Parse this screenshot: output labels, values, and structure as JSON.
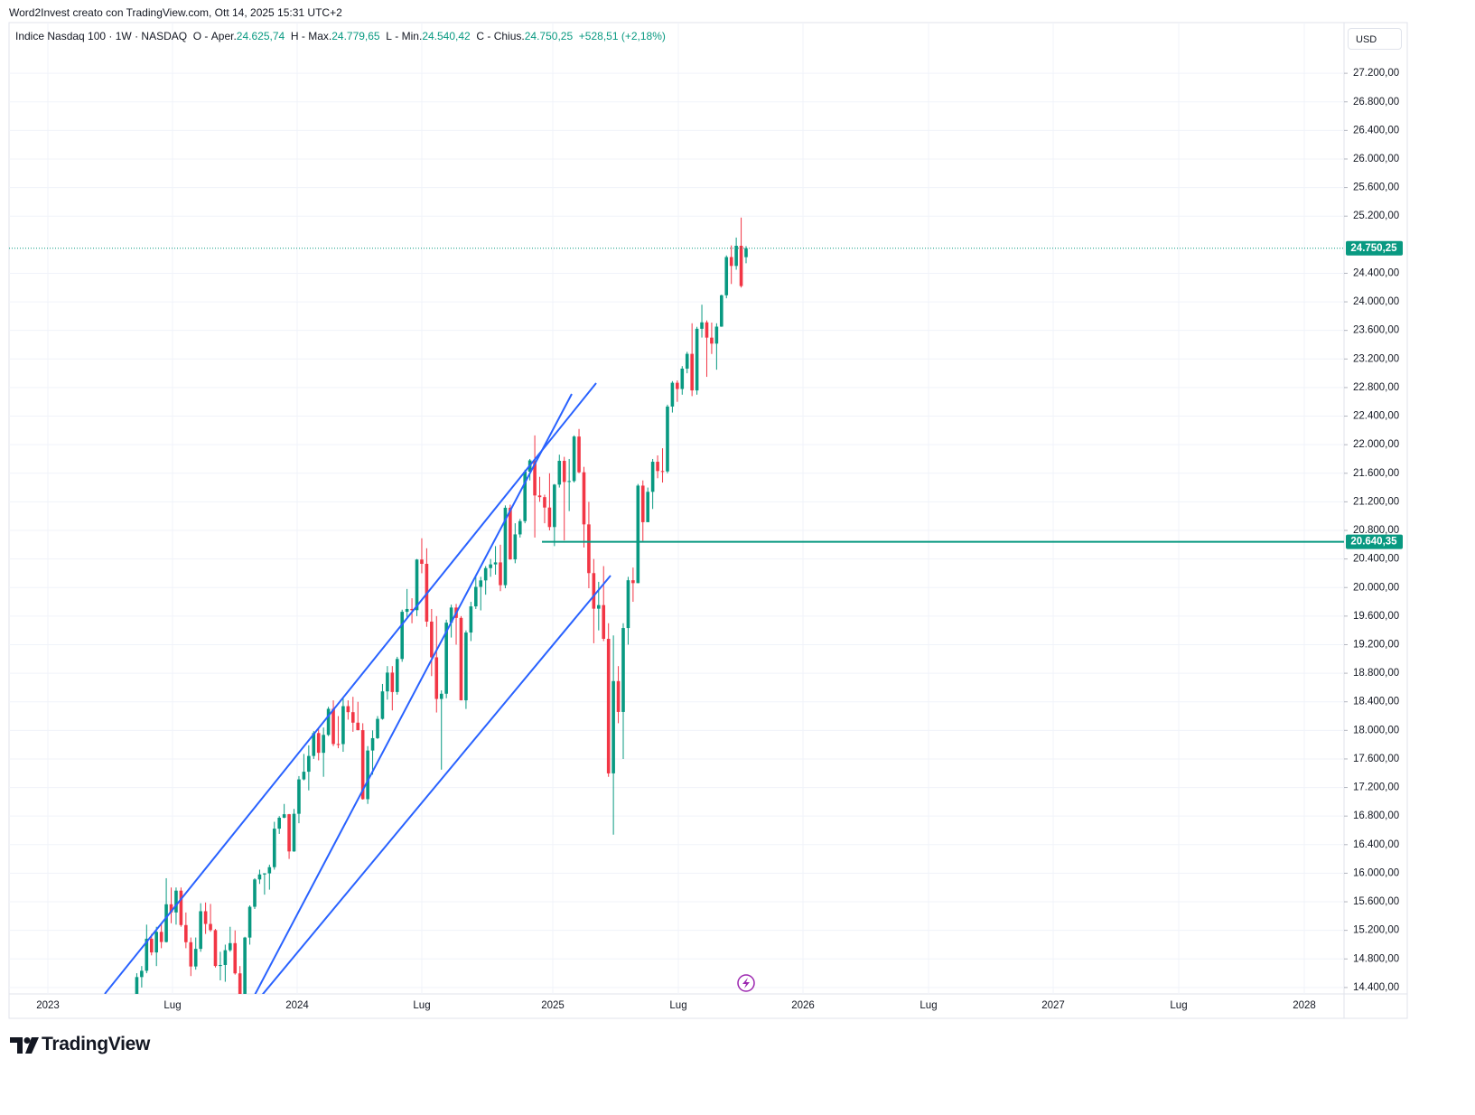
{
  "header": {
    "credit": "Word2Invest creato con TradingView.com, Ott 14, 2025 15:31 UTC+2",
    "symbol": "Indice Nasdaq 100 · 1W · NASDAQ",
    "o_key": "O",
    "o_name": "Aper.",
    "o_value": "24.625,74",
    "h_key": "H",
    "h_name": "Max.",
    "h_value": "24.779,65",
    "l_key": "L",
    "l_name": "Min.",
    "l_value": "24.540,42",
    "c_key": "C",
    "c_name": "Chius.",
    "c_value": "24.750,25",
    "change": "+528,51 (+2,18%)",
    "currency": "USD"
  },
  "footer": {
    "brand": "TradingView"
  },
  "chart_data": {
    "type": "candlestick",
    "up_color": "#089981",
    "down_color": "#f23645",
    "ylim": [
      14310,
      27910
    ],
    "yticks": [
      {
        "value": 14400,
        "label": "14.400,00"
      },
      {
        "value": 14800,
        "label": "14.800,00"
      },
      {
        "value": 15200,
        "label": "15.200,00"
      },
      {
        "value": 15600,
        "label": "15.600,00"
      },
      {
        "value": 16000,
        "label": "16.000,00"
      },
      {
        "value": 16400,
        "label": "16.400,00"
      },
      {
        "value": 16800,
        "label": "16.800,00"
      },
      {
        "value": 17200,
        "label": "17.200,00"
      },
      {
        "value": 17600,
        "label": "17.600,00"
      },
      {
        "value": 18000,
        "label": "18.000,00"
      },
      {
        "value": 18400,
        "label": "18.400,00"
      },
      {
        "value": 18800,
        "label": "18.800,00"
      },
      {
        "value": 19200,
        "label": "19.200,00"
      },
      {
        "value": 19600,
        "label": "19.600,00"
      },
      {
        "value": 20000,
        "label": "20.000,00"
      },
      {
        "value": 20400,
        "label": "20.400,00"
      },
      {
        "value": 20800,
        "label": "20.800,00"
      },
      {
        "value": 21200,
        "label": "21.200,00"
      },
      {
        "value": 21600,
        "label": "21.600,00"
      },
      {
        "value": 22000,
        "label": "22.000,00"
      },
      {
        "value": 22400,
        "label": "22.400,00"
      },
      {
        "value": 22800,
        "label": "22.800,00"
      },
      {
        "value": 23200,
        "label": "23.200,00"
      },
      {
        "value": 23600,
        "label": "23.600,00"
      },
      {
        "value": 24000,
        "label": "24.000,00"
      },
      {
        "value": 24400,
        "label": "24.400,00"
      },
      {
        "value": 25200,
        "label": "25.200,00"
      },
      {
        "value": 25600,
        "label": "25.600,00"
      },
      {
        "value": 26000,
        "label": "26.000,00"
      },
      {
        "value": 26400,
        "label": "26.400,00"
      },
      {
        "value": 26800,
        "label": "26.800,00"
      },
      {
        "value": 27200,
        "label": "27.200,00"
      }
    ],
    "xticks": [
      "2023",
      "Lug",
      "2024",
      "Lug",
      "2025",
      "Lug",
      "2026",
      "Lug",
      "2027",
      "Lug",
      "2028"
    ],
    "last_price": {
      "value": 24750.25,
      "label": "24.750,25"
    },
    "hline": {
      "value": 20640.35,
      "label": "20.640,35"
    },
    "open": [
      14250,
      14546,
      14634,
      15083,
      14891,
      15179,
      15037,
      15565,
      15451,
      15756,
      15274,
      15034,
      14694,
      14941,
      15468,
      15290,
      15203,
      14701,
      14715,
      14922,
      15021,
      14598,
      14180,
      15099,
      15530,
      15913,
      15983,
      15998,
      16085,
      16624,
      16777,
      16826,
      16305,
      16832,
      17314,
      17421,
      17642,
      17962,
      17686,
      17937,
      18302,
      17809,
      17808,
      18339,
      18255,
      18108,
      18003,
      17037,
      17718,
      17891,
      18161,
      18546,
      18809,
      18537,
      19000,
      19660,
      19700,
      19683,
      20392,
      20332,
      19523,
      19023,
      18440,
      18513,
      19508,
      19720,
      19575,
      18421,
      19370,
      19736,
      20009,
      20100,
      20272,
      20324,
      20352,
      20033,
      21117,
      20394,
      20744,
      20930,
      21622,
      21780,
      21289,
      21266,
      21120,
      20847,
      21441,
      21774,
      21478,
      21491,
      22114,
      21614,
      20884,
      20202,
      19704,
      19754,
      19282,
      17398,
      18690,
      18258,
      19433,
      20102,
      20062,
      21427,
      20915,
      21340,
      21761,
      21631,
      21626,
      22534,
      22867,
      22780,
      23065,
      23272,
      22760,
      23623,
      23713,
      23499,
      23415,
      23653,
      24092,
      24627,
      24503,
      24785,
      24625.74
    ],
    "high": [
      14600,
      14700,
      15280,
      15150,
      15250,
      15300,
      15930,
      15800,
      15800,
      15800,
      15450,
      15100,
      15100,
      15580,
      15590,
      15570,
      15220,
      14900,
      15000,
      15250,
      15200,
      14700,
      15110,
      15550,
      15930,
      16050,
      16000,
      16120,
      16720,
      16800,
      16970,
      16830,
      16900,
      17360,
      17670,
      17790,
      17990,
      18040,
      18040,
      18330,
      18420,
      18200,
      18450,
      18420,
      18470,
      18400,
      18100,
      17780,
      18000,
      18200,
      18650,
      18900,
      18900,
      19030,
      19690,
      19980,
      19850,
      20400,
      20690,
      20550,
      19700,
      19600,
      18560,
      19550,
      19760,
      19770,
      19600,
      19400,
      19800,
      20150,
      20150,
      20300,
      20400,
      20580,
      20600,
      21150,
      21160,
      20900,
      20960,
      21650,
      21800,
      22130,
      21550,
      21300,
      21600,
      21450,
      21860,
      21830,
      21800,
      22130,
      22220,
      21690,
      21200,
      20400,
      20080,
      20300,
      19500,
      19330,
      18900,
      19500,
      20150,
      20280,
      21450,
      21500,
      21400,
      21800,
      21850,
      21950,
      22560,
      22890,
      22900,
      23100,
      23300,
      23700,
      23650,
      23960,
      23740,
      23710,
      23700,
      24100,
      24650,
      24790,
      24900,
      25180,
      24779.65
    ],
    "low": [
      14200,
      14400,
      14600,
      14850,
      14700,
      14950,
      15030,
      15300,
      15280,
      15250,
      14950,
      14560,
      14650,
      14900,
      15150,
      15180,
      14680,
      14500,
      14480,
      14900,
      14580,
      14060,
      14180,
      15000,
      15500,
      15850,
      15700,
      15770,
      16050,
      16550,
      16770,
      16200,
      16300,
      16700,
      17300,
      17160,
      17600,
      17580,
      17350,
      17920,
      17780,
      17750,
      17700,
      18150,
      17980,
      18000,
      17030,
      16970,
      17380,
      17880,
      18150,
      18430,
      18280,
      18500,
      18960,
      19580,
      19500,
      19600,
      20200,
      19450,
      18760,
      18250,
      17450,
      18450,
      19300,
      19200,
      18420,
      18300,
      19250,
      19700,
      19680,
      19900,
      20150,
      20180,
      19950,
      19990,
      20390,
      20340,
      20700,
      20900,
      21500,
      20700,
      21200,
      20900,
      20800,
      20580,
      21400,
      20660,
      21070,
      21470,
      21600,
      20560,
      19990,
      19220,
      19400,
      19250,
      17350,
      16540,
      18100,
      17600,
      19200,
      19800,
      20060,
      20650,
      20920,
      21100,
      21530,
      21470,
      21600,
      22450,
      22600,
      22700,
      23000,
      22680,
      22700,
      23500,
      22950,
      23270,
      23050,
      23650,
      24050,
      24250,
      24450,
      24200,
      24540.42
    ],
    "close": [
      14546,
      14634,
      15083,
      14891,
      15179,
      15037,
      15565,
      15451,
      15756,
      15274,
      15034,
      14694,
      14941,
      15468,
      15290,
      15203,
      14701,
      14715,
      14922,
      15021,
      14598,
      14180,
      15099,
      15530,
      15913,
      15983,
      15998,
      16085,
      16624,
      16777,
      16826,
      16305,
      16832,
      17314,
      17421,
      17642,
      17962,
      17686,
      17937,
      18302,
      17809,
      17808,
      18339,
      18255,
      18108,
      18003,
      17037,
      17718,
      17891,
      18161,
      18546,
      18809,
      18537,
      19000,
      19660,
      19700,
      19683,
      20392,
      20332,
      19523,
      19023,
      18440,
      18513,
      19508,
      19720,
      19575,
      18421,
      19370,
      19736,
      20009,
      20100,
      20272,
      20324,
      20352,
      20033,
      21117,
      20394,
      20744,
      20930,
      21622,
      21780,
      21289,
      21266,
      21120,
      20847,
      21441,
      21774,
      21478,
      21491,
      22114,
      21614,
      20884,
      20202,
      19704,
      19754,
      19282,
      17398,
      18690,
      18258,
      19433,
      20102,
      20062,
      21427,
      20915,
      21340,
      21761,
      21631,
      21626,
      22534,
      22867,
      22780,
      23065,
      23272,
      22760,
      23623,
      23713,
      23499,
      23415,
      23653,
      24092,
      24627,
      24503,
      24785,
      24221,
      24750.25
    ]
  }
}
